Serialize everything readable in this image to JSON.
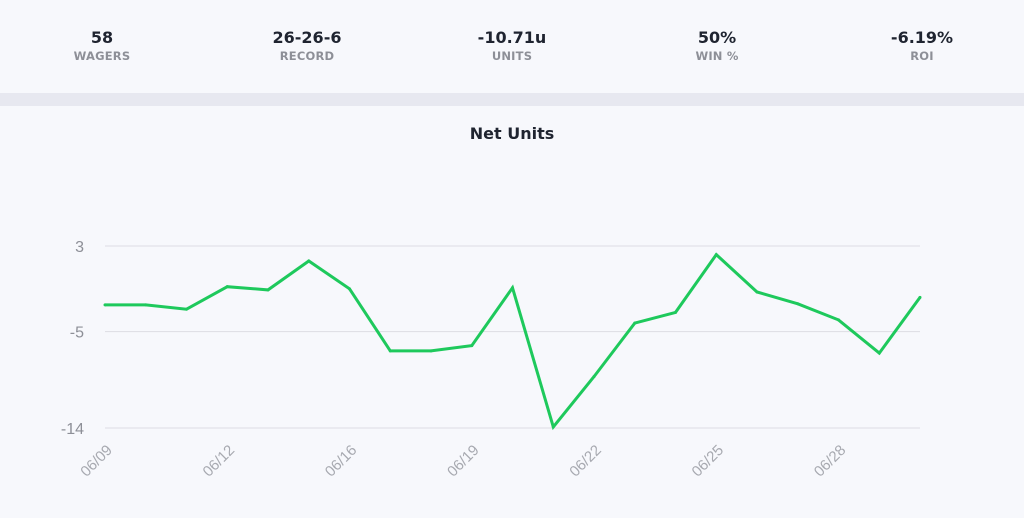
{
  "stats": [
    {
      "value": "58",
      "label": "WAGERS"
    },
    {
      "value": "26-26-6",
      "label": "RECORD"
    },
    {
      "value": "-10.71u",
      "label": "UNITS"
    },
    {
      "value": "50%",
      "label": "WIN %"
    },
    {
      "value": "-6.19%",
      "label": "ROI"
    }
  ],
  "colors": {
    "line": "#1ec95c",
    "grid": "#dcdde3",
    "background": "#f7f8fc",
    "band": "#e7e8f0"
  },
  "chart_data": {
    "type": "line",
    "title": "Net Units",
    "xlabel": "",
    "ylabel": "",
    "ylim": [
      -14,
      3
    ],
    "y_ticks": [
      3,
      -5,
      -14
    ],
    "grid": true,
    "x_tick_labels": [
      "06/09",
      "06/12",
      "06/16",
      "06/19",
      "06/22",
      "06/25",
      "06/28"
    ],
    "x_tick_indices": [
      0,
      3,
      6,
      9,
      12,
      15,
      18
    ],
    "series": [
      {
        "values": [
          -2.5,
          -2.5,
          -2.9,
          -0.8,
          -1.1,
          1.6,
          -1.0,
          -6.8,
          -6.8,
          -6.3,
          -0.9,
          -13.9,
          -9.2,
          -4.2,
          -3.2,
          2.2,
          -1.3,
          -2.4,
          -3.9,
          -7.0,
          -1.8
        ]
      }
    ]
  }
}
